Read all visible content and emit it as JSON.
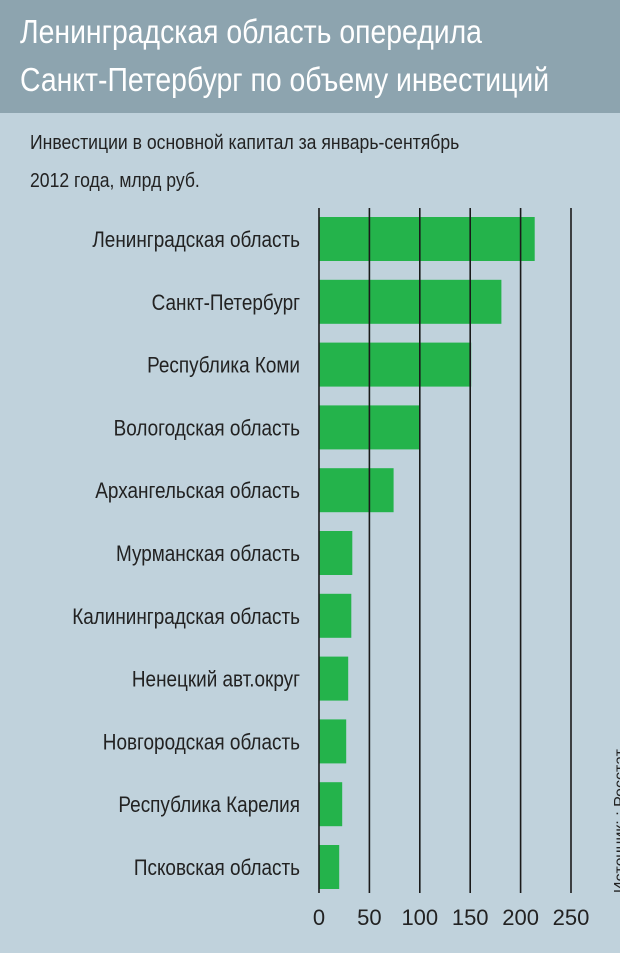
{
  "header": {
    "title_line1": "Ленинградская область опередила",
    "title_line2": "Санкт-Петербург по объему инвестиций",
    "background": "#8da4af"
  },
  "subtitle_line1": "Инвестиции в основной капитал за январь-сентябрь",
  "subtitle_line2": "2012 года, млрд руб.",
  "source": "Источник: : Росстат",
  "colors": {
    "background": "#c0d2dc",
    "bar": "#24b34b",
    "grid": "#1a1a1a",
    "text": "#222222"
  },
  "chart_data": {
    "type": "bar",
    "orientation": "horizontal",
    "categories": [
      "Ленинградская область",
      "Санкт-Петербург",
      "Республика Коми",
      "Вологодская область",
      "Архангельская область",
      "Мурманская область",
      "Калининградская область",
      "Ненецкий авт.округ",
      "Новгородская область",
      "Республика Карелия",
      "Псковская область"
    ],
    "values": [
      214,
      181,
      151,
      100,
      74,
      33,
      32,
      29,
      27,
      23,
      20
    ],
    "xlim": [
      0,
      250
    ],
    "xticks": [
      0,
      50,
      100,
      150,
      200,
      250
    ],
    "grid": true
  }
}
